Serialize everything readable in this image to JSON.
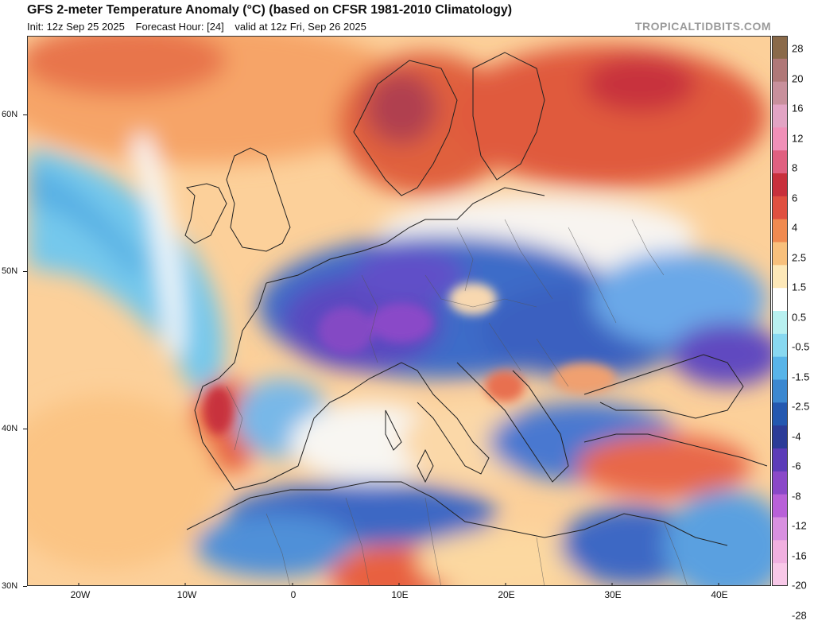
{
  "title": "GFS 2-meter Temperature Anomaly (°C) (based on CFSR 1981-2010 Climatology)",
  "init": "Init: 12z Sep 25 2025",
  "forecast_hour": "Forecast Hour: [24]",
  "valid": "valid at 12z Fri, Sep 26 2025",
  "brand": "TROPICALTIDBITS.COM",
  "latitudes": [
    "60N",
    "50N",
    "40N",
    "30N"
  ],
  "longitudes": [
    "20W",
    "10W",
    "0",
    "10E",
    "20E",
    "30E",
    "40E"
  ],
  "colorbar": {
    "labels": [
      "28",
      "20",
      "16",
      "12",
      "8",
      "6",
      "4",
      "2.5",
      "1.5",
      "0.5",
      "-0.5",
      "-1.5",
      "-2.5",
      "-4",
      "-6",
      "-8",
      "-12",
      "-16",
      "-20",
      "-28"
    ],
    "colors": [
      "#8a6a4a",
      "#b07878",
      "#c8909c",
      "#e2a4c4",
      "#f090b8",
      "#e06080",
      "#c8303c",
      "#e05040",
      "#f08a50",
      "#f8c07c",
      "#fde8b8",
      "#ffffff",
      "#b8f0f0",
      "#88d8f0",
      "#58b4e8",
      "#3c88d0",
      "#2458b0",
      "#2c3c98",
      "#5c3cb8",
      "#8a48c8",
      "#b860d8",
      "#d890e0",
      "#f0b0e0",
      "#f8c8e8"
    ]
  },
  "regions": [
    {
      "name": "atlantic-warm",
      "color": "#fbc488"
    },
    {
      "name": "atlantic-cool",
      "color": "#8cdcf0"
    },
    {
      "name": "europe-cold",
      "color": "#3c6cc8"
    },
    {
      "name": "scandinavia-warm",
      "color": "#e2603c"
    },
    {
      "name": "north-africa-warm",
      "color": "#f49c64"
    },
    {
      "name": "mediterranean-cool",
      "color": "#58a8e0"
    }
  ]
}
